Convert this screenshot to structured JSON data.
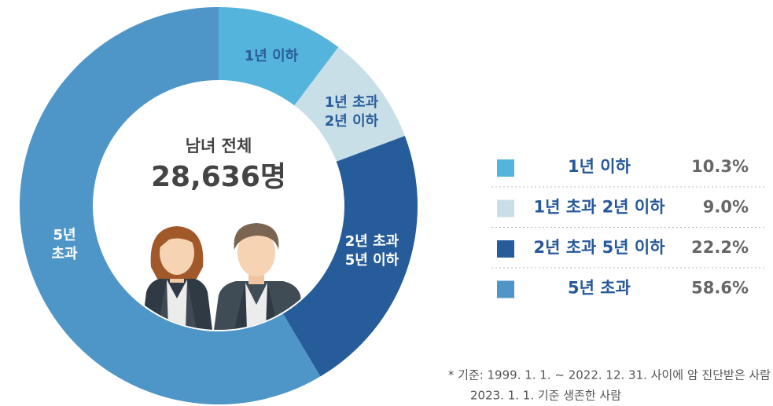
{
  "chart_data": {
    "type": "donut",
    "center_title": "남녀 전체",
    "center_value": "28,636명",
    "categories": [
      "1년 이하",
      "1년 초과 2년 이하",
      "2년 초과 5년 이하",
      "5년 초과"
    ],
    "slice_labels": [
      [
        "1년 이하"
      ],
      [
        "1년 초과",
        "2년 이하"
      ],
      [
        "2년 초과",
        "5년 이하"
      ],
      [
        "5년",
        "초과"
      ]
    ],
    "values": [
      10.3,
      9.0,
      22.2,
      58.6
    ],
    "value_labels": [
      "10.3%",
      "9.0%",
      "22.2%",
      "58.6%"
    ],
    "colors": [
      "#55b4dc",
      "#c9dfe8",
      "#265c9a",
      "#4f96c8"
    ],
    "footnote": [
      "* 기준: 1999. 1. 1. ~ 2022. 12. 31. 사이에 암 진단받은 사람",
      "2023. 1. 1. 기준 생존한 사람"
    ]
  }
}
